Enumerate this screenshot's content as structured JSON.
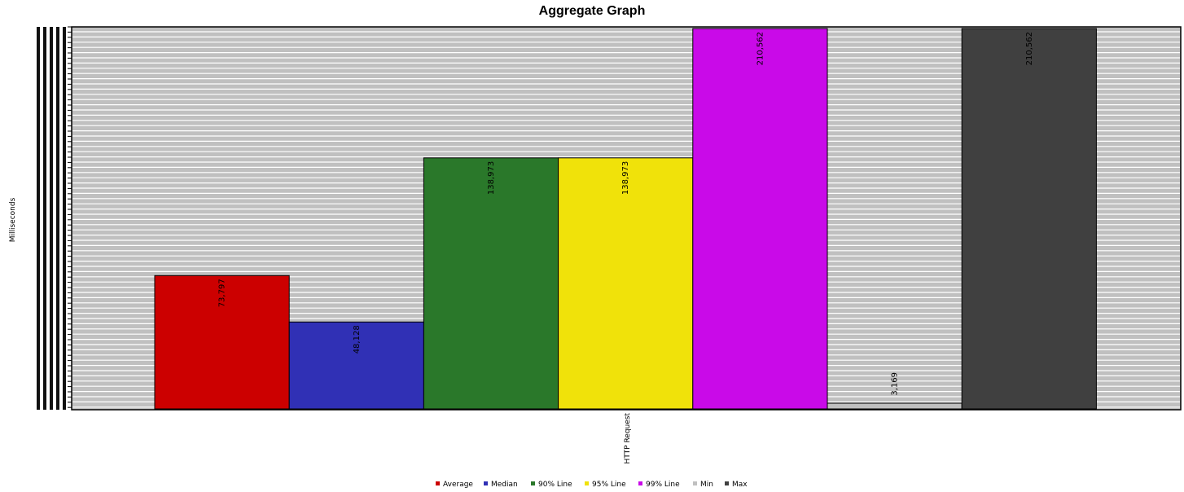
{
  "chart_data": {
    "type": "bar",
    "title": "Aggregate Graph",
    "ylabel": "Milliseconds",
    "xlabel": "",
    "categories": [
      "HTTP Request"
    ],
    "ylim": [
      0,
      211000
    ],
    "grid": true,
    "legend_position": "bottom",
    "series": [
      {
        "name": "Average",
        "values": [
          73797
        ],
        "label": "73,797",
        "color": "#cc0000"
      },
      {
        "name": "Median",
        "values": [
          48128
        ],
        "label": "48,128",
        "color": "#3030b5"
      },
      {
        "name": "90% Line",
        "values": [
          138973
        ],
        "label": "138,973",
        "color": "#2a782a"
      },
      {
        "name": "95% Line",
        "values": [
          138973
        ],
        "label": "138,973",
        "color": "#f0e20a"
      },
      {
        "name": "99% Line",
        "values": [
          210562
        ],
        "label": "210,562",
        "color": "#c90ae8"
      },
      {
        "name": "Min",
        "values": [
          3169
        ],
        "label": "3,169",
        "color": "#c0c0c0"
      },
      {
        "name": "Max",
        "values": [
          210562
        ],
        "label": "210,562",
        "color": "#404040"
      }
    ],
    "colors": {
      "plot_background": "#c0c0c0",
      "gridline": "#ffffff"
    }
  }
}
